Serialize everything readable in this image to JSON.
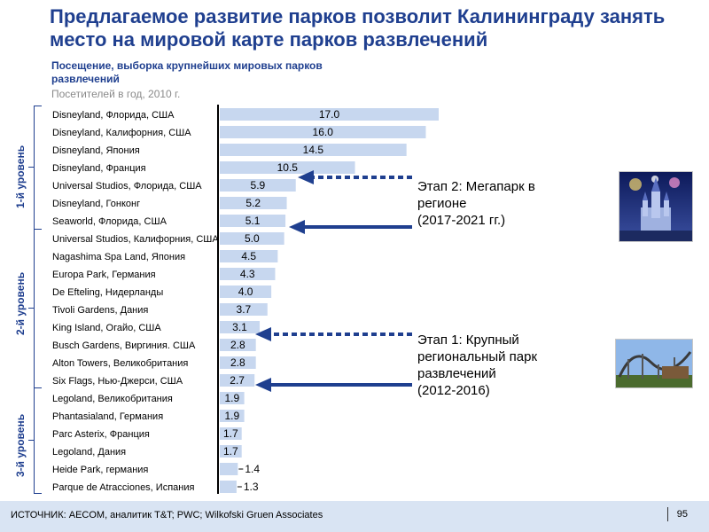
{
  "title": "Предлагаемое развитие парков позволит Калининграду занять место на мировой карте парков развлечений",
  "chart_data": {
    "type": "bar",
    "orientation": "horizontal",
    "title": "Посещение, выборка крупнейших мировых парков развлечений",
    "unit": "Посетителей  в год, 2010 г.",
    "categories": [
      "Disneyland, Флорида, США",
      "Disneyland, Калифорния,  США",
      "Disneyland, Япония",
      "Disneyland, Франция",
      "Universal  Studios, Флорида, США",
      "Disneyland, Гонконг",
      "Seaworld,  Флорида, США",
      "Universal  Studios, Калифорния,  США",
      "Nagashima  Spa Land, Япония",
      "Europa Park, Германия",
      "De  Efteling, Нидерланды",
      "Tivoli  Gardens, Дания",
      "King Island, Огайо, США",
      "Busch Gardens,  Виргиния. США",
      "Alton Towers,  Великобритания",
      "Six Flags, Нью-Джерси, США",
      "Legoland,  Великобритания",
      "Phantasialand, Германия",
      "Parc Asterix, Франция",
      "Legoland, Дания",
      "Heide Park, германия",
      "Parque de Atracciones, Испания"
    ],
    "values": [
      17.0,
      16.0,
      14.5,
      10.5,
      5.9,
      5.2,
      5.1,
      5.0,
      4.5,
      4.3,
      4.0,
      3.7,
      3.1,
      2.8,
      2.8,
      2.7,
      1.9,
      1.9,
      1.7,
      1.7,
      1.4,
      1.3
    ],
    "value_labels": [
      "17.0",
      "16.0",
      "14.5",
      "10.5",
      "5.9",
      "5.2",
      "5.1",
      "5.0",
      "4.5",
      "4.3",
      "4.0",
      "3.7",
      "3.1",
      "2.8",
      "2.8",
      "2.7",
      "1.9",
      "1.9",
      "1.7",
      "1.7",
      "1.4",
      "1.3"
    ],
    "xlim": [
      0,
      17.0
    ],
    "bar_color": "#c7d7ef",
    "tiers": [
      {
        "label": "1-й уровень",
        "from": 0,
        "to": 6
      },
      {
        "label": "2-й уровень",
        "from": 7,
        "to": 15
      },
      {
        "label": "3-й уровень",
        "from": 16,
        "to": 21
      }
    ]
  },
  "callouts": [
    {
      "text_lines": [
        "Этап 2: Мегапарк  в",
        "регионе",
        "(2017-2021 гг.)"
      ]
    },
    {
      "text_lines": [
        "Этап 1: Крупный",
        "региональный  парк",
        "развлечений",
        "(2012-2016)"
      ]
    }
  ],
  "photos": [
    {
      "subject": "castle-at-night"
    },
    {
      "subject": "roller-coaster"
    }
  ],
  "colors": {
    "title": "#1f3f8f",
    "arrow": "#1f3f8f",
    "footer_bg": "#d9e4f3"
  },
  "footer": {
    "source": "ИСТОЧНИК:  AECOM, аналитик  T&T; PWC; Wilkofski Gruen  Associates",
    "page": "95"
  }
}
